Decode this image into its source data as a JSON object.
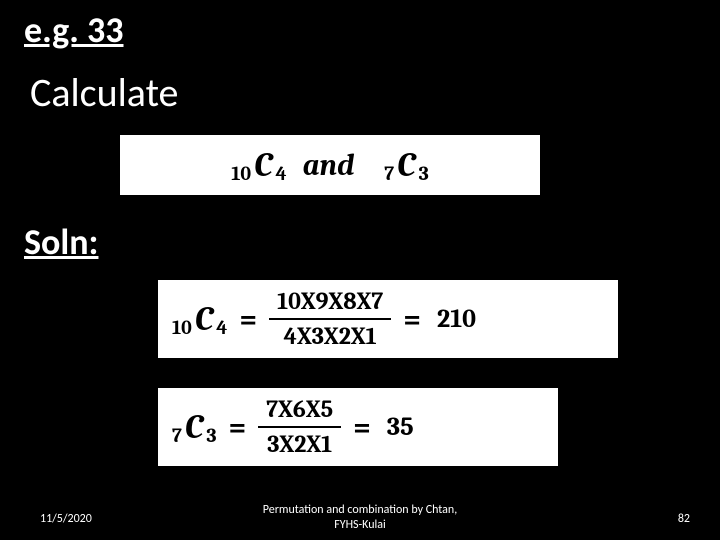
{
  "heading": "e.g. 33",
  "calculate_label": "Calculate",
  "soln_label": "Soln:",
  "expr1": {
    "comb_a": {
      "n": "10",
      "r": "4"
    },
    "and_text": "and",
    "comb_b": {
      "n": "7",
      "r": "3"
    }
  },
  "line1": {
    "comb": {
      "n": "10",
      "r": "4"
    },
    "numerator": "10X9X8X7",
    "denominator": "4X3X2X1",
    "result": "210"
  },
  "line2": {
    "comb": {
      "n": "7",
      "r": "3"
    },
    "numerator": "7X6X5",
    "denominator": "3X2X1",
    "result": "35"
  },
  "footer": {
    "date": "11/5/2020",
    "center_line1": "Permutation and combination by Chtan,",
    "center_line2": "FYHS-Kulai",
    "page": "82"
  },
  "colors": {
    "background": "#000000",
    "text": "#ffffff",
    "box_bg": "#ffffff",
    "box_text": "#000000"
  }
}
